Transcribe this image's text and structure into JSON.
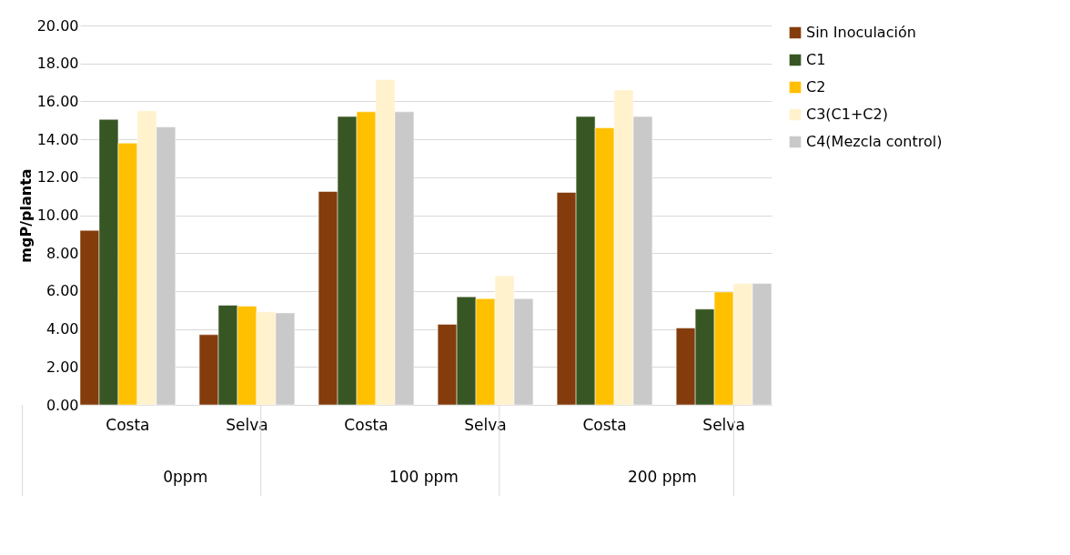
{
  "chart_data": {
    "type": "bar",
    "ylabel": "mgP/planta",
    "categories": [
      "Costa",
      "Selva",
      "Costa",
      "Selva",
      "Costa",
      "Selva"
    ],
    "annotations": [
      "0ppm",
      "100 ppm",
      "200 ppm"
    ],
    "series": [
      {
        "name": "Sin Inoculación",
        "color": "#843c0c",
        "values": [
          9.2,
          3.7,
          11.25,
          4.25,
          11.2,
          4.05
        ]
      },
      {
        "name": "C1",
        "color": "#375623",
        "values": [
          15.05,
          5.25,
          15.2,
          5.7,
          15.2,
          5.05
        ]
      },
      {
        "name": "C2",
        "color": "#ffc000",
        "values": [
          13.8,
          5.2,
          15.45,
          5.6,
          14.6,
          5.95
        ]
      },
      {
        "name": "C3(C1+C2)",
        "color": "#fff2cc",
        "values": [
          15.5,
          4.9,
          17.15,
          6.8,
          16.6,
          6.4
        ]
      },
      {
        "name": "C4(Mezcla control)",
        "color": "#c9c9c9",
        "values": [
          14.65,
          4.85,
          15.45,
          5.6,
          15.2,
          6.4
        ]
      }
    ],
    "ylim": [
      0,
      20
    ],
    "yticks": [
      {
        "value": 0,
        "label": "0.00"
      },
      {
        "value": 2,
        "label": "2.00"
      },
      {
        "value": 4,
        "label": "4.00"
      },
      {
        "value": 6,
        "label": "6.00"
      },
      {
        "value": 8,
        "label": "8.00"
      },
      {
        "value": 10,
        "label": "10.00"
      },
      {
        "value": 12,
        "label": "12.00"
      },
      {
        "value": 14,
        "label": "14.00"
      },
      {
        "value": 16,
        "label": "16.00"
      },
      {
        "value": 18,
        "label": "18.00"
      },
      {
        "value": 20,
        "label": "20.00"
      }
    ],
    "grid": "y",
    "legend": "top right"
  }
}
